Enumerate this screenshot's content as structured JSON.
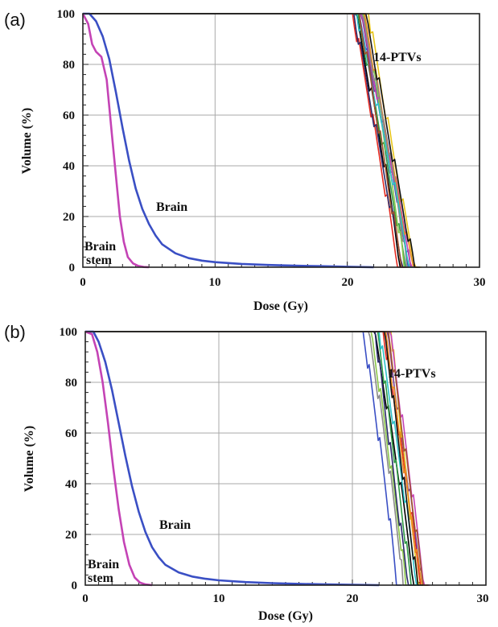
{
  "chart_data": [
    {
      "type": "line",
      "panel_label": "(a)",
      "xlabel": "Dose (Gy)",
      "ylabel": "Volume (%)",
      "xlim": [
        0,
        30
      ],
      "ylim": [
        0,
        100
      ],
      "xticks": [
        "0",
        "10",
        "20",
        "30"
      ],
      "yticks": [
        "0",
        "20",
        "40",
        "60",
        "80",
        "100"
      ],
      "grid": true,
      "annotations": {
        "ptv": "14-PTVs",
        "brain": "Brain",
        "stem_line1": "Brain",
        "stem_line2": "stem"
      },
      "series": [
        {
          "name": "Brain",
          "color": "#3a4fc4",
          "x": [
            0,
            0.5,
            1.0,
            1.5,
            2.0,
            2.5,
            3.0,
            3.5,
            4.0,
            4.5,
            5.0,
            5.5,
            6.0,
            7.0,
            8.0,
            9.0,
            10.0,
            12.0,
            14.0,
            16.0,
            18.0,
            20.0,
            22.0
          ],
          "y": [
            100,
            100,
            97,
            91,
            82,
            69,
            55,
            42,
            31,
            23,
            17,
            12.5,
            9,
            5.5,
            3.6,
            2.6,
            2.0,
            1.3,
            0.9,
            0.6,
            0.4,
            0.2,
            0
          ]
        },
        {
          "name": "Brain stem",
          "color": "#c443b5",
          "x": [
            0,
            0.4,
            0.7,
            1.0,
            1.4,
            1.8,
            2.2,
            2.5,
            2.8,
            3.1,
            3.4,
            3.8,
            4.2,
            4.6,
            5.0
          ],
          "y": [
            100,
            96,
            88,
            85,
            83,
            74,
            52,
            36,
            20,
            10,
            4,
            1.5,
            0.5,
            0.1,
            0
          ]
        }
      ],
      "ptv_series": {
        "count": 14,
        "colors": [
          "#000000",
          "#e52b21",
          "#2f9a45",
          "#7a3e93",
          "#e7c51a",
          "#3a4fc4",
          "#8cc64a",
          "#c443b5",
          "#2a2a6a",
          "#e98a21",
          "#8a8a8a",
          "#2ec0c8",
          "#a0522d",
          "#111111"
        ],
        "d100": [
          20.6,
          20.4,
          20.8,
          21.0,
          21.6,
          20.9,
          21.2,
          21.0,
          20.5,
          21.3,
          21.1,
          20.7,
          20.9,
          21.4
        ],
        "d0": [
          24.0,
          23.8,
          24.4,
          24.8,
          25.2,
          24.6,
          24.3,
          24.9,
          24.2,
          25.0,
          24.5,
          24.7,
          24.1,
          25.1
        ]
      }
    },
    {
      "type": "line",
      "panel_label": "(b)",
      "xlabel": "Dose (Gy)",
      "ylabel": "Volume (%)",
      "xlim": [
        0,
        30
      ],
      "ylim": [
        0,
        100
      ],
      "xticks": [
        "0",
        "10",
        "20",
        "30"
      ],
      "yticks": [
        "0",
        "20",
        "40",
        "60",
        "80",
        "100"
      ],
      "grid": true,
      "annotations": {
        "ptv": "14-PTVs",
        "brain": "Brain",
        "stem_line1": "Brain",
        "stem_line2": "stem"
      },
      "series": [
        {
          "name": "Brain",
          "color": "#3a4fc4",
          "x": [
            0,
            0.6,
            1.0,
            1.5,
            2.0,
            2.5,
            3.0,
            3.5,
            4.0,
            4.5,
            5.0,
            5.5,
            6.0,
            7.0,
            8.0,
            9.0,
            10.0,
            12.0,
            14.0,
            16.0,
            18.0,
            20.0,
            22.0
          ],
          "y": [
            100,
            100,
            96,
            88,
            77,
            64,
            51,
            39,
            29,
            21,
            15,
            11,
            8,
            5,
            3.4,
            2.5,
            1.9,
            1.2,
            0.8,
            0.5,
            0.3,
            0.15,
            0
          ]
        },
        {
          "name": "Brain stem",
          "color": "#c443b5",
          "x": [
            0,
            0.5,
            0.9,
            1.3,
            1.7,
            2.1,
            2.5,
            2.9,
            3.3,
            3.7,
            4.1,
            4.5,
            5.0
          ],
          "y": [
            100,
            99,
            92,
            80,
            64,
            46,
            30,
            17,
            8,
            3,
            1,
            0.3,
            0
          ]
        }
      ],
      "ptv_series": {
        "count": 14,
        "colors": [
          "#000000",
          "#e52b21",
          "#2f9a45",
          "#7a3e93",
          "#e7c51a",
          "#3a4fc4",
          "#8cc64a",
          "#c443b5",
          "#2a2a6a",
          "#e98a21",
          "#8a8a8a",
          "#2ec0c8",
          "#a0522d",
          "#111111"
        ],
        "d100": [
          21.6,
          22.3,
          21.9,
          22.6,
          22.9,
          20.8,
          21.4,
          22.8,
          21.7,
          22.5,
          21.2,
          22.0,
          22.7,
          22.4
        ],
        "d0": [
          24.6,
          25.1,
          24.4,
          25.3,
          25.0,
          23.3,
          24.0,
          25.4,
          24.2,
          25.2,
          23.8,
          24.8,
          25.3,
          24.9
        ]
      }
    }
  ]
}
